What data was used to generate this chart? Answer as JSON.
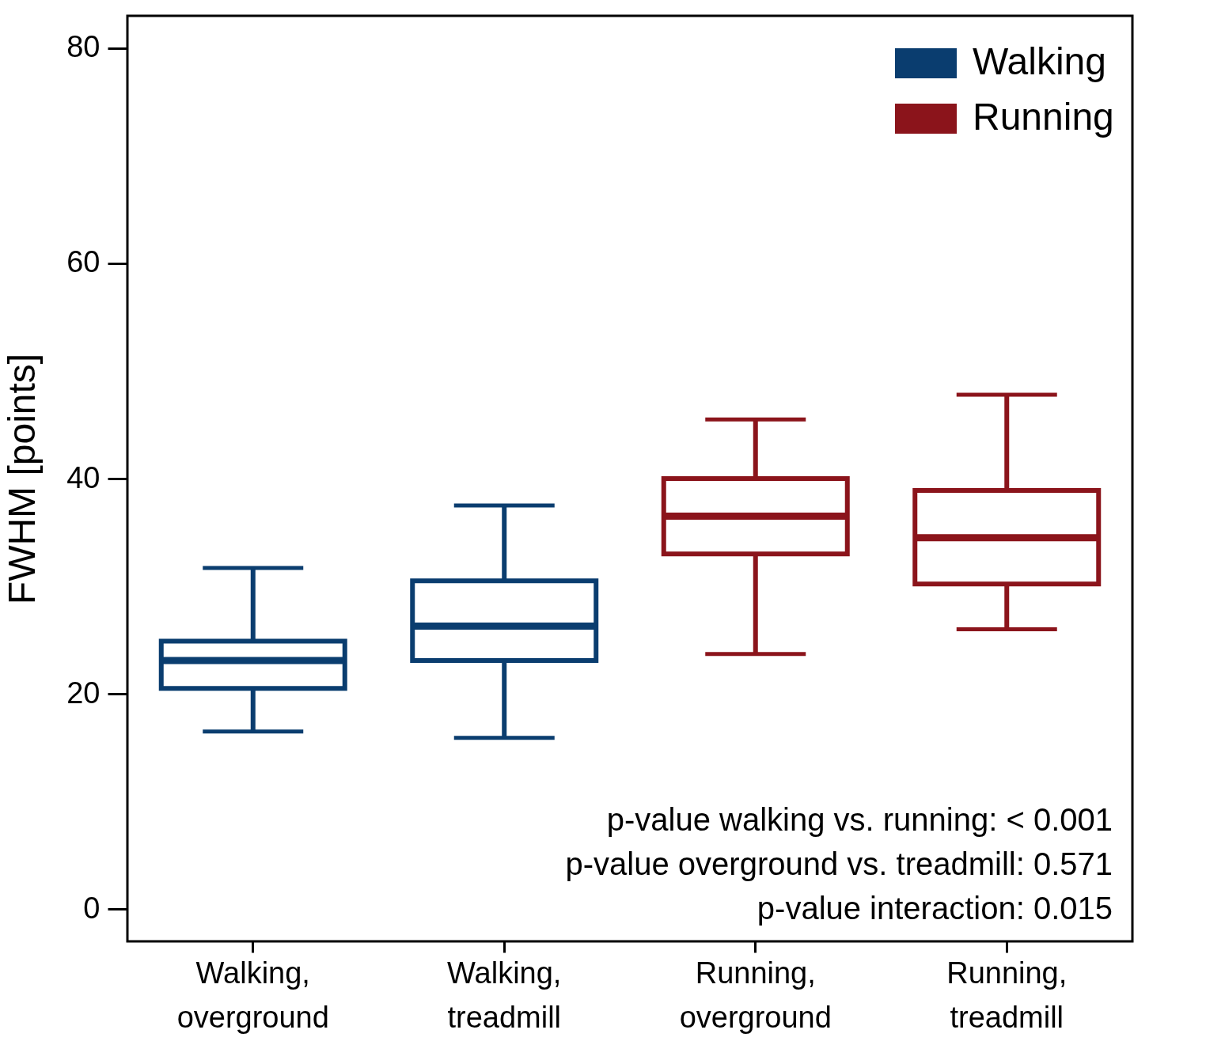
{
  "chart_data": {
    "type": "box",
    "ylabel": "FWHM [points]",
    "categories": [
      "Walking, overground",
      "Walking, treadmill",
      "Running, overground",
      "Running, treadmill"
    ],
    "series": [
      {
        "name": "Walking",
        "color": "#0a3d6f",
        "boxes": [
          {
            "low": 16.5,
            "q1": 20.5,
            "median": 23.1,
            "q3": 24.9,
            "high": 31.7
          },
          {
            "low": 15.9,
            "q1": 23.1,
            "median": 26.3,
            "q3": 30.5,
            "high": 37.5
          },
          null,
          null
        ]
      },
      {
        "name": "Running",
        "color": "#8b141b",
        "boxes": [
          null,
          null,
          {
            "low": 23.7,
            "q1": 33.0,
            "median": 36.5,
            "q3": 40.0,
            "high": 45.5
          },
          {
            "low": 26.0,
            "q1": 30.2,
            "median": 34.5,
            "q3": 38.9,
            "high": 47.8
          }
        ]
      }
    ],
    "ylim": [
      -3,
      83
    ],
    "yticks": [
      0,
      20,
      40,
      60,
      80
    ],
    "grid": false,
    "legend": "top right",
    "annotations": [
      "p-value walking vs. running: < 0.001",
      "p-value overground vs. treadmill: 0.571",
      "p-value interaction: 0.015"
    ]
  }
}
